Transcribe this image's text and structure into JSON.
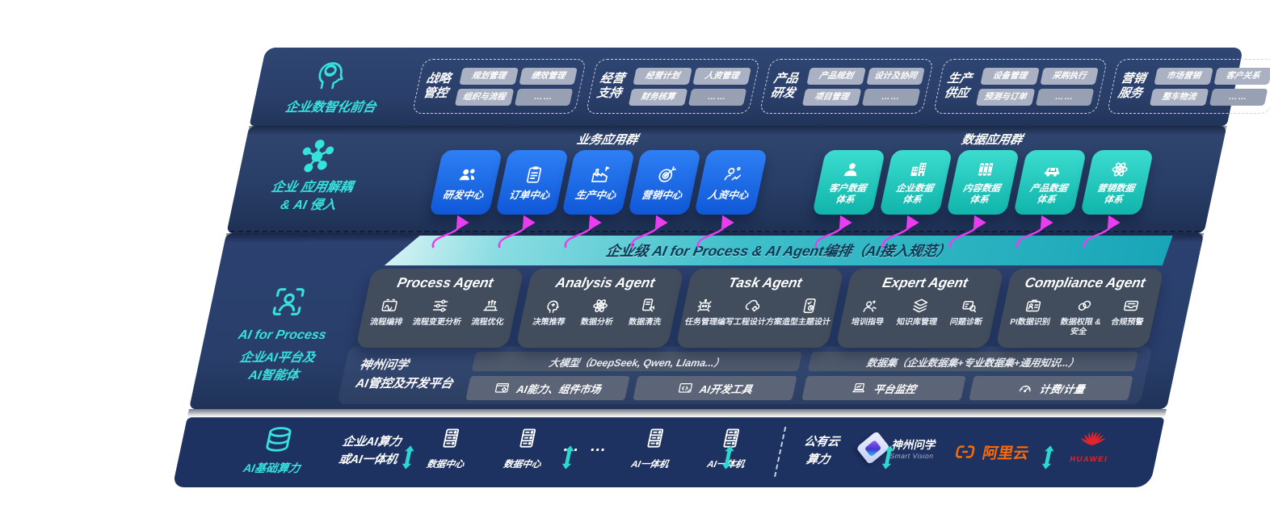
{
  "colors": {
    "band_navy": "#293e67",
    "infra_navy": "#1d3261",
    "accent_teal": "#35e2de",
    "app_blue": "#1a6fe9",
    "data_teal": "#22cbc0",
    "banner_teal": "#3fbfca",
    "arrow_magenta": "#ea3df2",
    "chip_gray": "#a9b1c2",
    "agent_slate": "#414c5d",
    "aliyun_orange": "#ff6a00",
    "huawei_red": "#e62329"
  },
  "front": {
    "label": "企业数智化前台",
    "groups": [
      {
        "title": "战略管控",
        "title_lines": [
          "战略",
          "管控"
        ],
        "chips": [
          "规划管理",
          "绩效管理",
          "组织与流程",
          "……"
        ]
      },
      {
        "title": "经营支持",
        "title_lines": [
          "经营",
          "支持"
        ],
        "chips": [
          "经营计划",
          "人资管理",
          "财务核算",
          "……"
        ]
      },
      {
        "title": "产品研发",
        "title_lines": [
          "产品",
          "研发"
        ],
        "chips": [
          "产品规划",
          "设计及协同",
          "项目管理",
          "……"
        ]
      },
      {
        "title": "生产供应",
        "title_lines": [
          "生产",
          "供应"
        ],
        "chips": [
          "设备管理",
          "采购执行",
          "预测与订单",
          "……"
        ]
      },
      {
        "title": "营销服务",
        "title_lines": [
          "营销",
          "服务"
        ],
        "chips": [
          "市场营销",
          "客户关系",
          "整车物流",
          "……"
        ]
      }
    ]
  },
  "apps": {
    "label_lines": [
      "企业 应用解耦",
      "& AI 侵入"
    ],
    "business_title": "业务应用群",
    "data_title": "数据应用群",
    "business_apps": [
      {
        "label": "研发中心",
        "icon": "team-icon"
      },
      {
        "label": "订单中心",
        "icon": "clipboard-icon"
      },
      {
        "label": "生产中心",
        "icon": "factory-icon"
      },
      {
        "label": "营销中心",
        "icon": "target-icon"
      },
      {
        "label": "人资中心",
        "icon": "hr-icon"
      }
    ],
    "data_systems": [
      {
        "label_lines": [
          "客户数据",
          "体系"
        ],
        "icon": "customer-icon"
      },
      {
        "label_lines": [
          "企业数据",
          "体系"
        ],
        "icon": "enterprise-icon"
      },
      {
        "label_lines": [
          "内容数据",
          "体系"
        ],
        "icon": "content-icon"
      },
      {
        "label_lines": [
          "产品数据",
          "体系"
        ],
        "icon": "product-icon"
      },
      {
        "label_lines": [
          "营销数据",
          "体系"
        ],
        "icon": "atom-icon"
      }
    ]
  },
  "banner": {
    "text": "企业级 AI for Process & AI Agent编排（AI接入规范）"
  },
  "ai": {
    "label_lines": [
      "AI for Process",
      "企业AI平台及",
      "AI智能体"
    ],
    "agents": [
      {
        "title": "Process Agent",
        "items": [
          {
            "label_lines": [
              "流程编排"
            ],
            "icon": "flow-icon"
          },
          {
            "label_lines": [
              "流程变更分析"
            ],
            "icon": "sliders-icon"
          },
          {
            "label_lines": [
              "流程优化"
            ],
            "icon": "machine-icon"
          }
        ]
      },
      {
        "title": "Analysis Agent",
        "items": [
          {
            "label_lines": [
              "决策推荐"
            ],
            "icon": "decision-icon"
          },
          {
            "label_lines": [
              "数据分析"
            ],
            "icon": "atom-icon"
          },
          {
            "label_lines": [
              "数据清洗"
            ],
            "icon": "clean-icon"
          }
        ]
      },
      {
        "title": "Task Agent",
        "items": [
          {
            "label_lines": [
              "任务管理"
            ],
            "icon": "robot-icon"
          },
          {
            "label_lines": [
              "编写工程设计方案"
            ],
            "icon": "cloudgear-icon"
          },
          {
            "label_lines": [
              "造型主题设计"
            ],
            "icon": "tablet-icon"
          }
        ]
      },
      {
        "title": "Expert Agent",
        "items": [
          {
            "label_lines": [
              "培训指导"
            ],
            "icon": "training-icon"
          },
          {
            "label_lines": [
              "知识库管理"
            ],
            "icon": "layers-icon"
          },
          {
            "label_lines": [
              "问题诊断"
            ],
            "icon": "diagnose-icon"
          }
        ]
      },
      {
        "title": "Compliance Agent",
        "items": [
          {
            "label_lines": [
              "PI数据识别"
            ],
            "icon": "idcard-icon"
          },
          {
            "label_lines": [
              "数据权限 &",
              "安全"
            ],
            "icon": "link-icon"
          },
          {
            "label_lines": [
              "合规预警"
            ],
            "icon": "inbox-icon"
          }
        ]
      }
    ],
    "platform": {
      "label_lines": [
        "神州问学",
        "AI管控及开发平台"
      ],
      "models_bar": "大模型（DeepSeek, Qwen, Llama...）",
      "datasets_bar": "数据集（企业数据集+专业数据集+通用知识...）",
      "tools": [
        {
          "label": "AI能力、组件市场",
          "icon": "window-gear-icon"
        },
        {
          "label": "AI开发工具",
          "icon": "window-code-icon"
        },
        {
          "label": "平台监控",
          "icon": "laptop-icon"
        },
        {
          "label": "计费/计量",
          "icon": "gauge-icon"
        }
      ]
    }
  },
  "infra": {
    "label": "AI基础算力",
    "compute_lines": [
      "企业AI算力",
      "或AI一体机"
    ],
    "nodes": [
      {
        "label": "数据中心",
        "icon": "server-icon"
      },
      {
        "label": "数据中心",
        "icon": "server-icon"
      },
      {
        "label": "… …",
        "icon": null
      },
      {
        "label": "AI一体机",
        "icon": "server-icon"
      },
      {
        "label": "AI一体机",
        "icon": "server-icon"
      }
    ],
    "cloud_lines": [
      "公有云",
      "算力"
    ],
    "vendors": [
      {
        "name": "神州问学",
        "sub": "Smart Vision"
      },
      {
        "name": "阿里云"
      },
      {
        "name": "HUAWEI"
      }
    ]
  }
}
